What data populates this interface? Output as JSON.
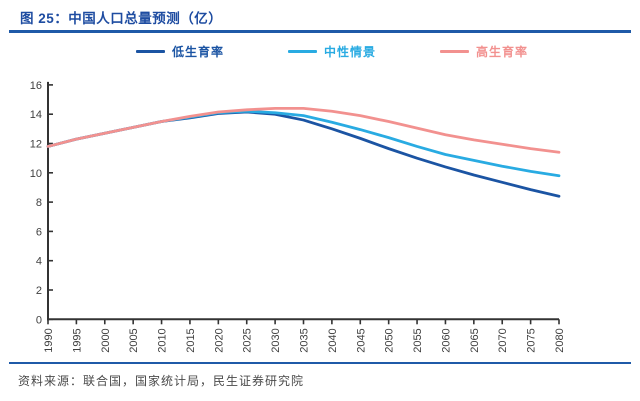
{
  "figure": {
    "title": "图 25：中国人口总量预测（亿）",
    "source": "资料来源：联合国，国家统计局，民生证券研究院"
  },
  "colors": {
    "title_blue": "#1e4ca1",
    "rule_blue": "#1f5aa8",
    "axis": "#333333",
    "tick_text": "#404040",
    "source_text": "#4a4a4a",
    "series_low": "#1b54a3",
    "series_medium": "#29abe2",
    "series_high": "#f2918f"
  },
  "chart_data": {
    "type": "line",
    "title": "中国人口总量预测（亿）",
    "xlabel": "",
    "ylabel": "",
    "ylim": [
      0,
      16
    ],
    "ytick_step": 2,
    "xtick_step_years": 5,
    "grid": false,
    "legend_position": "top",
    "x": [
      1990,
      1995,
      2000,
      2005,
      2010,
      2015,
      2020,
      2025,
      2030,
      2035,
      2040,
      2045,
      2050,
      2055,
      2060,
      2065,
      2070,
      2075,
      2080
    ],
    "series": [
      {
        "id": "low",
        "name": "低生育率",
        "color_key": "series_low",
        "values": [
          11.8,
          12.3,
          12.7,
          13.1,
          13.5,
          13.75,
          14.05,
          14.15,
          14.0,
          13.6,
          13.0,
          12.35,
          11.65,
          11.0,
          10.4,
          9.85,
          9.35,
          8.85,
          8.4
        ]
      },
      {
        "id": "medium",
        "name": "中性情景",
        "color_key": "series_medium",
        "values": [
          11.8,
          12.3,
          12.7,
          13.1,
          13.5,
          13.8,
          14.1,
          14.2,
          14.1,
          13.9,
          13.45,
          12.95,
          12.4,
          11.8,
          11.25,
          10.85,
          10.45,
          10.1,
          9.8
        ]
      },
      {
        "id": "high",
        "name": "高生育率",
        "color_key": "series_high",
        "values": [
          11.8,
          12.3,
          12.7,
          13.1,
          13.5,
          13.85,
          14.15,
          14.3,
          14.4,
          14.4,
          14.2,
          13.9,
          13.5,
          13.05,
          12.6,
          12.25,
          11.95,
          11.65,
          11.4
        ]
      }
    ]
  }
}
